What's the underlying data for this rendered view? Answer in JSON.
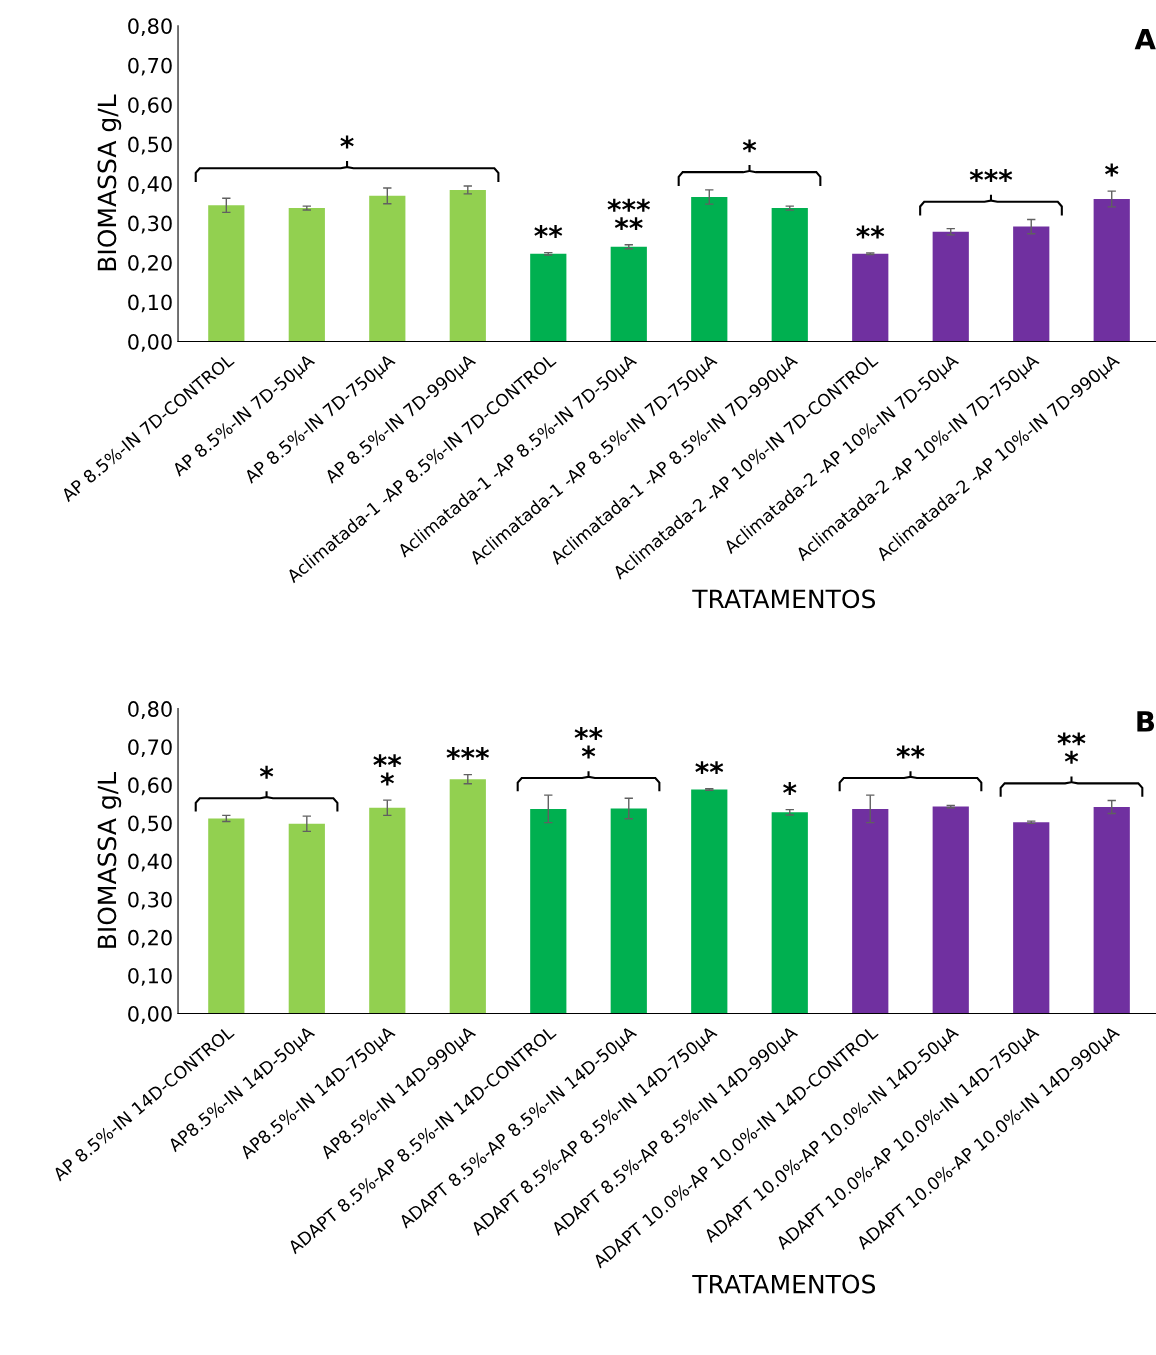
{
  "chart_data": [
    {
      "type": "bar",
      "xlabel": "TRATAMENTOS",
      "ylabel": "BIOMASSA g/L",
      "categories": [
        "AP 8.5%-IN 7D-CONTROL",
        "AP 8.5%-IN 7D-50µA",
        "AP 8.5%-IN 7D-750µA",
        "AP 8.5%-IN 7D-990µA",
        "Aclimatada-1 -AP 8.5%-IN 7D-CONTROL",
        "Aclimatada-1 -AP 8.5%-IN 7D-50µA",
        "Aclimatada-1 -AP 8.5%-IN 7D-750µA",
        "Aclimatada-1 -AP 8.5%-IN 7D-990µA",
        "Aclimatada-2 -AP 10%-IN 7D-CONTROL",
        "Aclimatada-2 -AP 10%-IN 7D-50µA",
        "Aclimatada-2 -AP 10%-IN 7D-750µA",
        "Aclimatada-2 -AP 10%-IN 7D-990µA"
      ],
      "values": [
        0.345,
        0.338,
        0.369,
        0.384,
        0.222,
        0.24,
        0.366,
        0.338,
        0.222,
        0.278,
        0.291,
        0.361
      ],
      "errors": [
        0.018,
        0.005,
        0.02,
        0.01,
        0.003,
        0.005,
        0.018,
        0.005,
        0.002,
        0.008,
        0.018,
        0.02
      ],
      "colors": [
        "#92d050",
        "#92d050",
        "#92d050",
        "#92d050",
        "#00b050",
        "#00b050",
        "#00b050",
        "#00b050",
        "#7030a0",
        "#7030a0",
        "#7030a0",
        "#7030a0"
      ],
      "ylim": [
        0,
        0.8
      ],
      "yticks": [
        {
          "value": 0,
          "label": "0,00"
        },
        {
          "value": 0.1,
          "label": "0,10"
        },
        {
          "value": 0.2,
          "label": "0,20"
        },
        {
          "value": 0.3,
          "label": "0,30"
        },
        {
          "value": 0.4,
          "label": "0,40"
        },
        {
          "value": 0.5,
          "label": "0,50"
        },
        {
          "value": 0.6,
          "label": "0,60"
        },
        {
          "value": 0.7,
          "label": "0,70"
        },
        {
          "value": 0.8,
          "label": "0,80"
        }
      ],
      "grid": false,
      "legend": false,
      "annotations": [
        "*",
        "**",
        "***\n**",
        "*",
        "**",
        "***",
        "*",
        "A"
      ]
    },
    {
      "type": "bar",
      "xlabel": "TRATAMENTOS",
      "ylabel": "BIOMASSA g/L",
      "categories": [
        "AP 8.5%-IN 14D-CONTROL",
        "AP8.5%-IN 14D-50µA",
        "AP8.5%-IN 14D-750µA",
        "AP8.5%-IN 14D-990µA",
        "ADAPT 8.5%-AP 8.5%-IN 14D-CONTROL",
        "ADAPT 8.5%-AP 8.5%-IN 14D-50µA",
        "ADAPT 8.5%-AP 8.5%-IN 14D-750µA",
        "ADAPT 8.5%-AP 8.5%-IN 14D-990µA",
        "ADAPT 10.0%-AP 10.0%-IN 14D-CONTROL",
        "ADAPT 10.0%-AP 10.0%-IN 14D-50µA",
        "ADAPT 10.0%-AP 10.0%-IN 14D-750µA",
        "ADAPT 10.0%-AP 10.0%-IN 14D-990µA"
      ],
      "values": [
        0.512,
        0.498,
        0.54,
        0.615,
        0.537,
        0.538,
        0.588,
        0.528,
        0.537,
        0.543,
        0.502,
        0.542
      ],
      "errors": [
        0.008,
        0.02,
        0.02,
        0.012,
        0.036,
        0.027,
        0.002,
        0.007,
        0.036,
        0.003,
        0.003,
        0.017
      ],
      "colors": [
        "#92d050",
        "#92d050",
        "#92d050",
        "#92d050",
        "#00b050",
        "#00b050",
        "#00b050",
        "#00b050",
        "#7030a0",
        "#7030a0",
        "#7030a0",
        "#7030a0"
      ],
      "ylim": [
        0,
        0.8
      ],
      "yticks": [
        {
          "value": 0,
          "label": "0,00"
        },
        {
          "value": 0.1,
          "label": "0,10"
        },
        {
          "value": 0.2,
          "label": "0,20"
        },
        {
          "value": 0.3,
          "label": "0,30"
        },
        {
          "value": 0.4,
          "label": "0,40"
        },
        {
          "value": 0.5,
          "label": "0,50"
        },
        {
          "value": 0.6,
          "label": "0,60"
        },
        {
          "value": 0.7,
          "label": "0,70"
        },
        {
          "value": 0.8,
          "label": "0,80"
        }
      ],
      "grid": false,
      "legend": false,
      "annotations": [
        "*",
        "**\n*",
        "***",
        "**\n*",
        "**",
        "*",
        "**",
        "**\n*",
        "B"
      ]
    }
  ]
}
